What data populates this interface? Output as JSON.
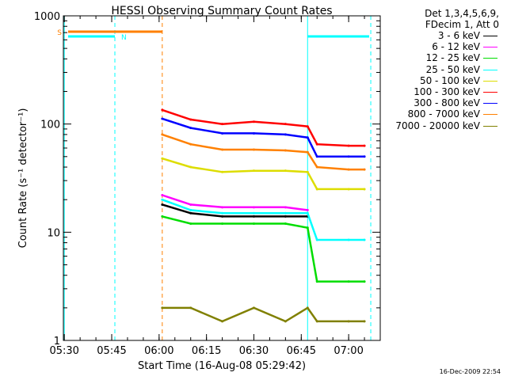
{
  "chart_data": {
    "type": "line",
    "title": "HESSI Observing Summary Count Rates",
    "xlabel": "Start Time (16-Aug-08 05:29:42)",
    "ylabel": "Count Rate (s⁻¹ detector⁻¹)",
    "yscale": "log",
    "ylim": [
      1,
      1000
    ],
    "xlim": [
      "05:29:42",
      "07:10:00"
    ],
    "x_ticks": [
      "05:30",
      "05:45",
      "06:00",
      "06:15",
      "06:30",
      "06:45",
      "07:00"
    ],
    "y_ticks": [
      "1",
      "10",
      "100",
      "1000"
    ],
    "flag_labels": [
      "S",
      "N"
    ],
    "legend_header": [
      "Det 1,3,4,5,6,9,",
      "FDecim 1, Att 0"
    ],
    "x": [
      "06:01",
      "06:10",
      "06:20",
      "06:30",
      "06:40",
      "06:47",
      "06:50",
      "07:00",
      "07:05"
    ],
    "series": [
      {
        "name": "3 - 6 keV",
        "color": "#000000",
        "values": [
          18,
          15,
          14,
          14,
          14,
          14,
          null,
          null,
          null
        ]
      },
      {
        "name": "6 - 12 keV",
        "color": "#ff00ff",
        "values": [
          22,
          18,
          17,
          17,
          17,
          16,
          null,
          null,
          null
        ]
      },
      {
        "name": "12 - 25 keV",
        "color": "#00dd00",
        "values": [
          14,
          12,
          12,
          12,
          12,
          11,
          3.5,
          3.5,
          3.5
        ]
      },
      {
        "name": "25 - 50 keV",
        "color": "#00ffff",
        "values": [
          20,
          16,
          15,
          15,
          15,
          15,
          8.5,
          8.5,
          8.5
        ]
      },
      {
        "name": "50 - 100 keV",
        "color": "#dddd00",
        "values": [
          48,
          40,
          36,
          37,
          37,
          36,
          25,
          25,
          25
        ]
      },
      {
        "name": "100 - 300 keV",
        "color": "#ff0000",
        "values": [
          135,
          110,
          100,
          105,
          100,
          95,
          65,
          63,
          63
        ]
      },
      {
        "name": "300 - 800 keV",
        "color": "#0000ff",
        "values": [
          112,
          92,
          82,
          82,
          80,
          75,
          50,
          50,
          50
        ]
      },
      {
        "name": "800 - 7000 keV",
        "color": "#ff8000",
        "values": [
          80,
          65,
          58,
          58,
          57,
          55,
          40,
          38,
          38
        ]
      },
      {
        "name": "7000 - 20000 keV",
        "color": "#808000",
        "values": [
          2,
          2,
          1.5,
          2,
          1.5,
          2,
          1.5,
          1.5,
          1.5
        ]
      }
    ]
  },
  "footer_date": "16-Dec-2009 22:54"
}
